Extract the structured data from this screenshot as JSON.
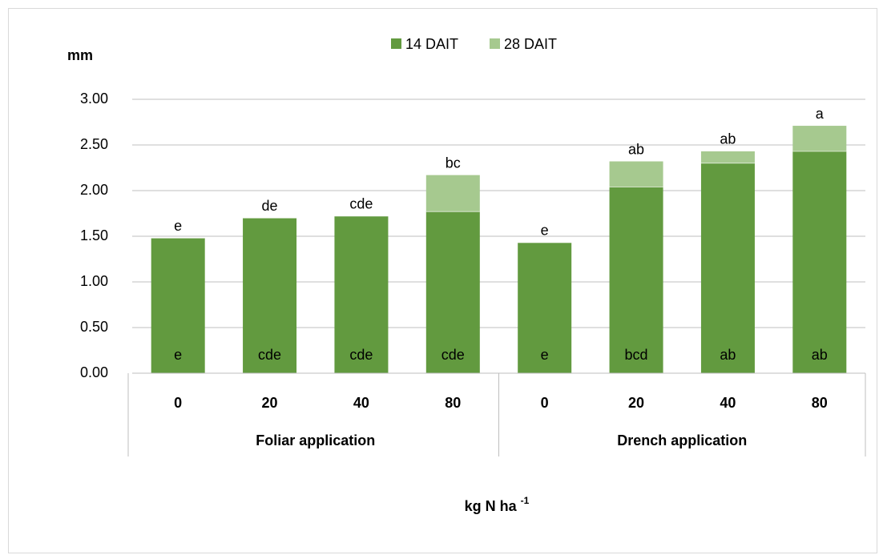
{
  "chart_data": {
    "type": "stacked_bar",
    "ylabel": "mm",
    "xlabel": "kg N ha",
    "xlabel_superscript": "-1",
    "groups": [
      {
        "label": "Foliar application",
        "categories": [
          "0",
          "20",
          "40",
          "80"
        ]
      },
      {
        "label": "Drench application",
        "categories": [
          "0",
          "20",
          "40",
          "80"
        ]
      }
    ],
    "series": [
      {
        "name": "14 DAIT",
        "color": "#629a3f",
        "values": [
          1.48,
          1.7,
          1.72,
          1.77,
          1.43,
          2.04,
          2.3,
          2.43
        ],
        "letters": [
          "e",
          "cde",
          "cde",
          "cde",
          "e",
          "bcd",
          "ab",
          "ab"
        ]
      },
      {
        "name": "28 DAIT",
        "color": "#a6c98f",
        "values": [
          0,
          0,
          0,
          0.4,
          0,
          0.28,
          0.13,
          0.28
        ],
        "letters": [
          "e",
          "de",
          "cde",
          "bc",
          "e",
          "ab",
          "ab",
          "a"
        ]
      }
    ],
    "ylim": [
      0,
      3
    ],
    "yticks": [
      {
        "value": 0,
        "label": "0.00"
      },
      {
        "value": 0.5,
        "label": "0.50"
      },
      {
        "value": 1,
        "label": "1.00"
      },
      {
        "value": 1.5,
        "label": "1.50"
      },
      {
        "value": 2,
        "label": "2.00"
      },
      {
        "value": 2.5,
        "label": "2.50"
      },
      {
        "value": 3,
        "label": "3.00"
      }
    ],
    "grid": true,
    "legend": "top"
  }
}
